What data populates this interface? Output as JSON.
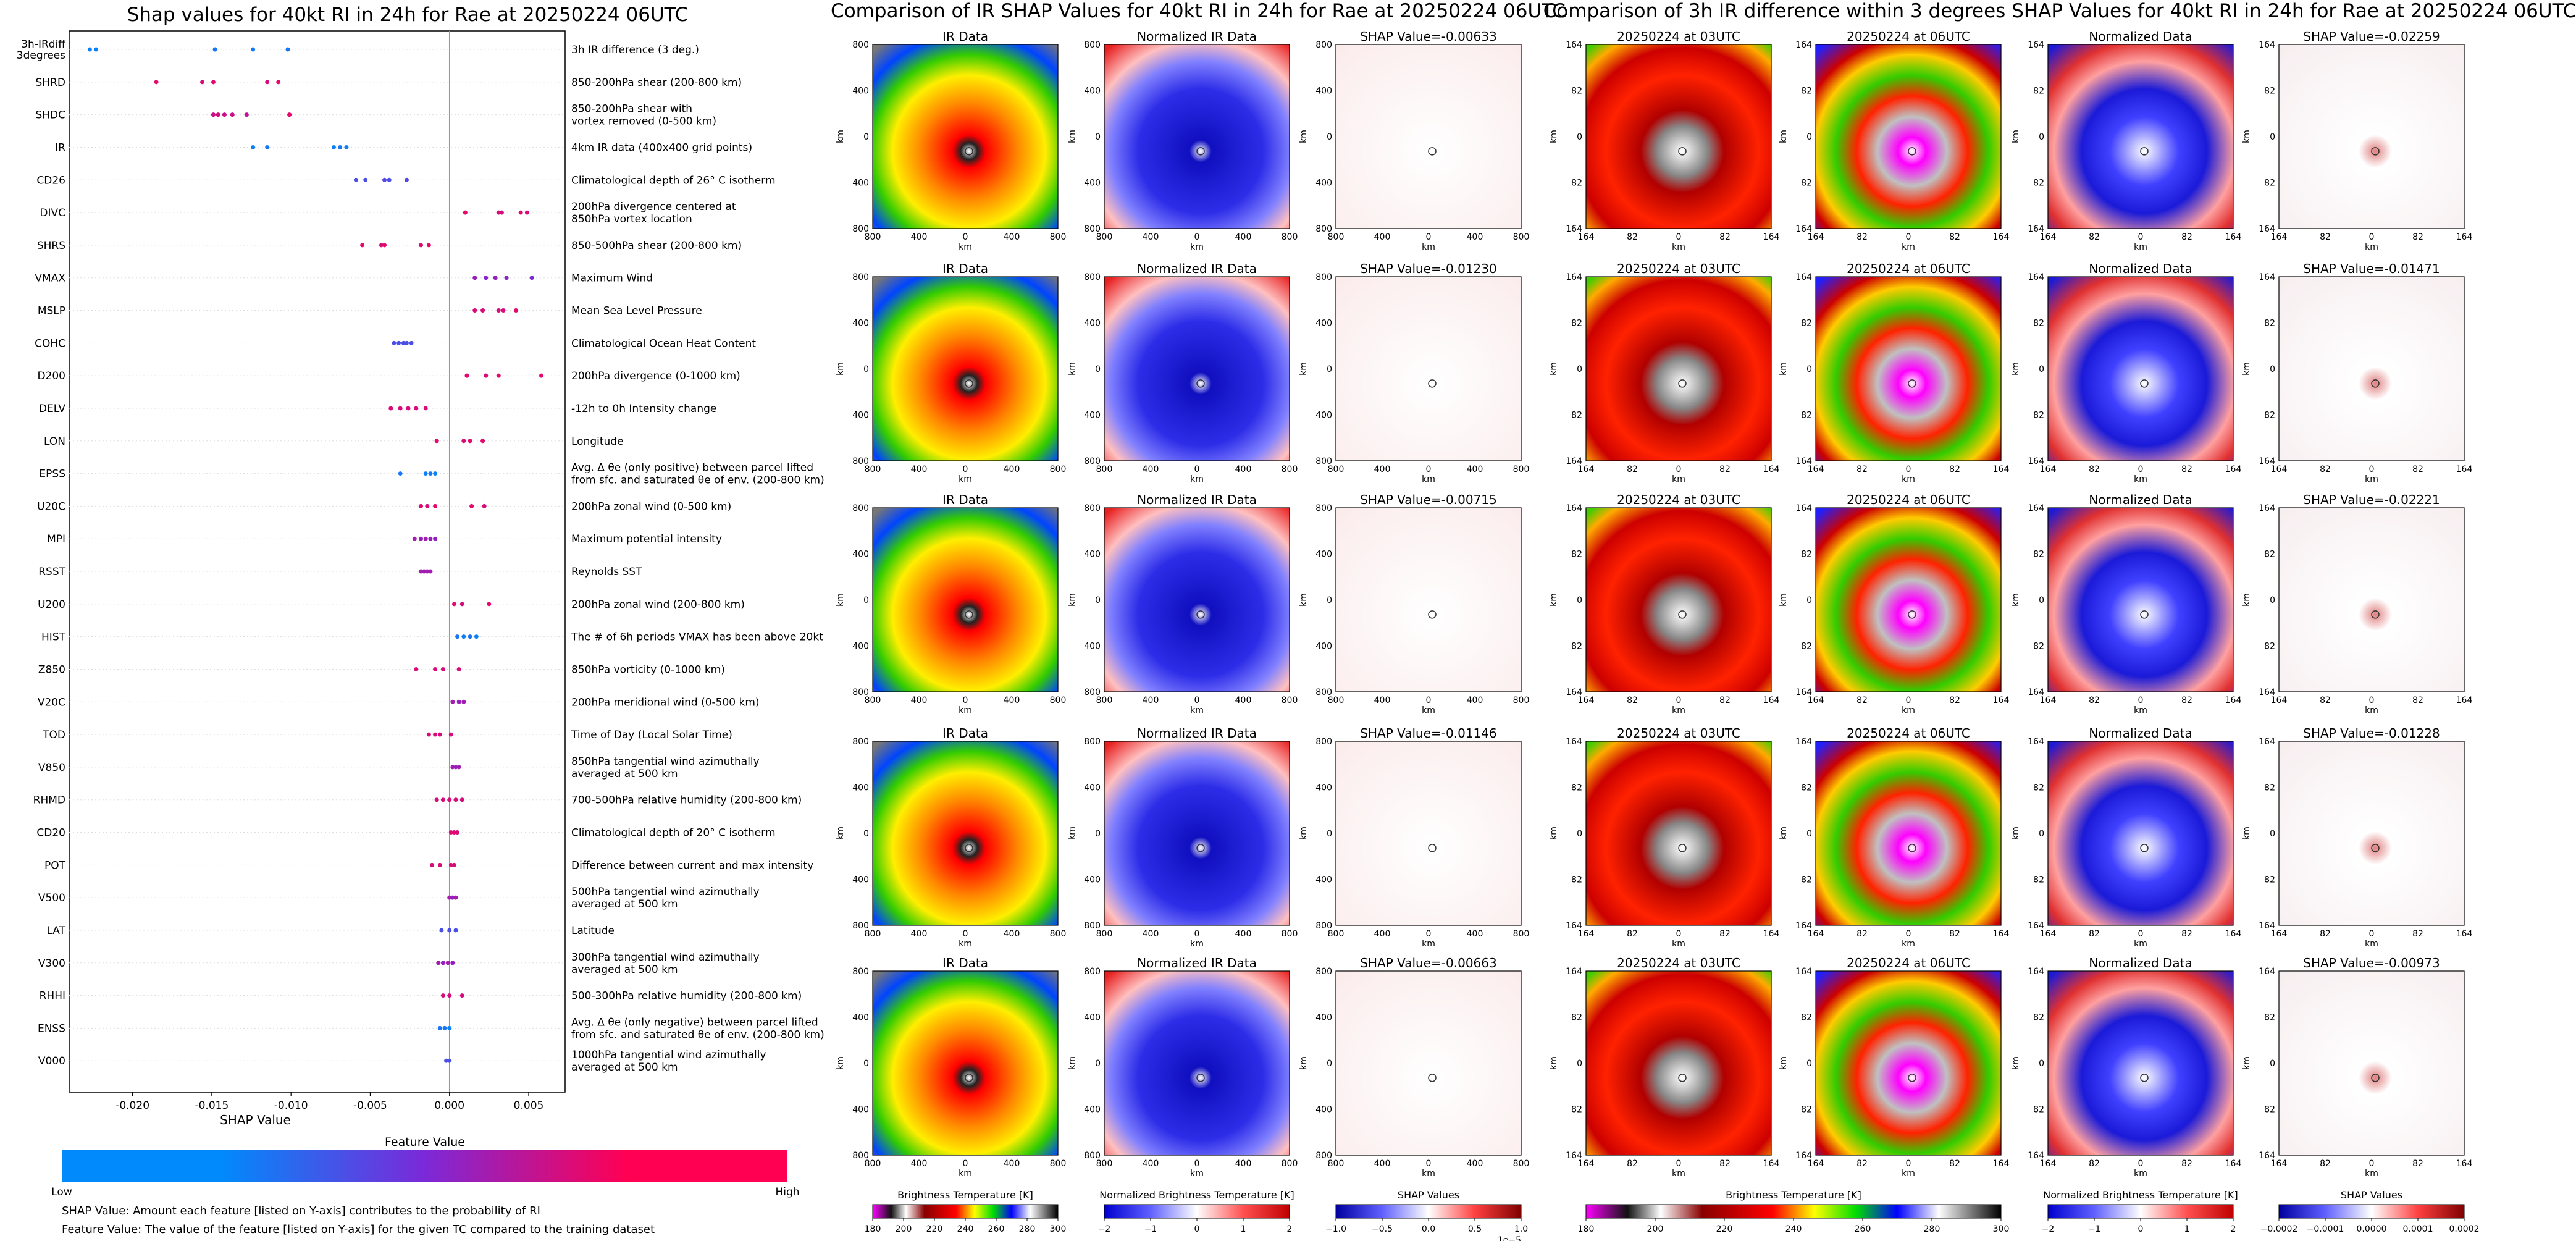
{
  "chart_data": [
    {
      "type": "scatter",
      "title": "Shap values for 40kt RI in 24h for Rae at 20250224 06UTC",
      "xlabel": "SHAP Value",
      "xlim": [
        -0.024,
        0.0073
      ],
      "xticks": [
        "-0.020",
        "-0.015",
        "-0.010",
        "-0.005",
        "0.000",
        "0.005"
      ],
      "xtick_values": [
        -0.02,
        -0.015,
        -0.01,
        -0.005,
        0.0,
        0.005
      ],
      "colorbar": {
        "title": "Feature Value",
        "low": "Low",
        "high": "High"
      },
      "features": [
        {
          "name": "3h-IRdiff\n3degrees",
          "desc": "3h IR difference (3 deg.)",
          "values": [
            -0.0227,
            -0.0223,
            -0.0148,
            -0.0124,
            -0.0102
          ],
          "colors": [
            0.05,
            0.05,
            0.1,
            0.08,
            0.1
          ]
        },
        {
          "name": "SHRD",
          "desc": "850-200hPa shear (200-800 km)",
          "values": [
            -0.0185,
            -0.0156,
            -0.0149,
            -0.0115,
            -0.0108
          ],
          "colors": [
            0.9,
            0.85,
            0.9,
            0.85,
            0.9
          ]
        },
        {
          "name": "SHDC",
          "desc": "850-200hPa shear with\nvortex removed (0-500 km)",
          "values": [
            -0.0149,
            -0.0146,
            -0.0142,
            -0.0137,
            -0.0128,
            -0.0101
          ],
          "colors": [
            0.8,
            0.85,
            0.8,
            0.8,
            0.75,
            0.9
          ]
        },
        {
          "name": "IR",
          "desc": "4km IR data (400x400 grid points)",
          "values": [
            -0.0124,
            -0.0115,
            -0.0073,
            -0.0069,
            -0.0065
          ],
          "colors": [
            0.05,
            0.1,
            0.05,
            0.1,
            0.05
          ]
        },
        {
          "name": "CD26",
          "desc": "Climatological depth of 26° C isotherm",
          "values": [
            -0.0059,
            -0.0053,
            -0.0041,
            -0.0038,
            -0.0027
          ],
          "colors": [
            0.3,
            0.3,
            0.35,
            0.3,
            0.35
          ]
        },
        {
          "name": "DIVC",
          "desc": "200hPa divergence centered at\n850hPa vortex location",
          "values": [
            0.001,
            0.0031,
            0.0033,
            0.0045,
            0.0049
          ],
          "colors": [
            0.9,
            0.85,
            0.85,
            0.9,
            0.85
          ]
        },
        {
          "name": "SHRS",
          "desc": "850-500hPa shear (200-800 km)",
          "values": [
            -0.0055,
            -0.0043,
            -0.0041,
            -0.0018,
            -0.0013
          ],
          "colors": [
            0.9,
            0.85,
            0.9,
            0.85,
            0.9
          ]
        },
        {
          "name": "VMAX",
          "desc": "Maximum Wind",
          "values": [
            0.0016,
            0.0023,
            0.0029,
            0.0036,
            0.0052
          ],
          "colors": [
            0.6,
            0.55,
            0.6,
            0.55,
            0.5
          ]
        },
        {
          "name": "MSLP",
          "desc": "Mean Sea Level Pressure",
          "values": [
            0.0016,
            0.0021,
            0.0031,
            0.0034,
            0.0042
          ],
          "colors": [
            0.85,
            0.85,
            0.85,
            0.85,
            0.9
          ]
        },
        {
          "name": "COHC",
          "desc": "Climatological Ocean Heat Content",
          "values": [
            -0.0035,
            -0.0032,
            -0.0029,
            -0.0027,
            -0.0024
          ],
          "colors": [
            0.3,
            0.3,
            0.3,
            0.3,
            0.3
          ]
        },
        {
          "name": "D200",
          "desc": "200hPa divergence (0-1000 km)",
          "values": [
            0.0011,
            0.0023,
            0.0031,
            0.0058
          ],
          "colors": [
            0.9,
            0.85,
            0.9,
            0.9
          ]
        },
        {
          "name": "DELV",
          "desc": "-12h to 0h Intensity change",
          "values": [
            -0.0037,
            -0.0031,
            -0.0026,
            -0.0021,
            -0.0015
          ],
          "colors": [
            0.85,
            0.85,
            0.85,
            0.85,
            0.85
          ]
        },
        {
          "name": "LON",
          "desc": "Longitude",
          "values": [
            -0.0008,
            0.0009,
            0.0013,
            0.0021
          ],
          "colors": [
            0.9,
            0.85,
            0.9,
            0.9
          ]
        },
        {
          "name": "EPSS",
          "desc": "Avg. Δ θe (only positive) between parcel lifted\nfrom sfc. and saturated θe of env. (200-800 km)",
          "values": [
            -0.0031,
            -0.0015,
            -0.0012,
            -0.0009
          ],
          "colors": [
            0.1,
            0.05,
            0.1,
            0.05
          ]
        },
        {
          "name": "U20C",
          "desc": "200hPa zonal wind (0-500 km)",
          "values": [
            -0.0018,
            -0.0014,
            -0.0009,
            0.0014,
            0.0022
          ],
          "colors": [
            0.9,
            0.85,
            0.9,
            0.9,
            0.85
          ]
        },
        {
          "name": "MPI",
          "desc": "Maximum potential intensity",
          "values": [
            -0.0022,
            -0.0018,
            -0.0015,
            -0.0012,
            -0.0009
          ],
          "colors": [
            0.65,
            0.6,
            0.65,
            0.6,
            0.6
          ]
        },
        {
          "name": "RSST",
          "desc": "Reynolds SST",
          "values": [
            -0.0018,
            -0.0016,
            -0.0014,
            -0.0012
          ],
          "colors": [
            0.65,
            0.65,
            0.65,
            0.65
          ]
        },
        {
          "name": "U200",
          "desc": "200hPa zonal wind (200-800 km)",
          "values": [
            0.0003,
            0.0008,
            0.0025
          ],
          "colors": [
            0.9,
            0.85,
            0.9
          ]
        },
        {
          "name": "HIST",
          "desc": "The # of 6h periods VMAX has been above 20kt",
          "values": [
            0.0005,
            0.0009,
            0.0013,
            0.0017
          ],
          "colors": [
            0.1,
            0.05,
            0.1,
            0.05
          ]
        },
        {
          "name": "Z850",
          "desc": "850hPa vorticity (0-1000 km)",
          "values": [
            -0.0021,
            -0.0009,
            -0.0004,
            0.0006
          ],
          "colors": [
            0.85,
            0.85,
            0.85,
            0.85
          ]
        },
        {
          "name": "V20C",
          "desc": "200hPa meridional wind (0-500 km)",
          "values": [
            0.0002,
            0.0006,
            0.0009
          ],
          "colors": [
            0.65,
            0.6,
            0.65
          ]
        },
        {
          "name": "TOD",
          "desc": "Time of Day (Local Solar Time)",
          "values": [
            -0.0013,
            -0.0009,
            -0.0006,
            0.0001
          ],
          "colors": [
            0.85,
            0.85,
            0.85,
            0.85
          ]
        },
        {
          "name": "V850",
          "desc": "850hPa tangential wind azimuthally\naveraged at 500 km",
          "values": [
            0.0002,
            0.0004,
            0.0006
          ],
          "colors": [
            0.65,
            0.6,
            0.65
          ]
        },
        {
          "name": "RHMD",
          "desc": "700-500hPa relative humidity (200-800 km)",
          "values": [
            -0.0008,
            -0.0004,
            0.0,
            0.0004,
            0.0008
          ],
          "colors": [
            0.85,
            0.85,
            0.85,
            0.85,
            0.85
          ]
        },
        {
          "name": "CD20",
          "desc": "Climatological depth of 20° C isotherm",
          "values": [
            0.0001,
            0.0003,
            0.0005
          ],
          "colors": [
            0.85,
            0.9,
            0.85
          ]
        },
        {
          "name": "POT",
          "desc": "Difference between current and max intensity",
          "values": [
            -0.0011,
            -0.0006,
            0.0001,
            0.0003
          ],
          "colors": [
            0.85,
            0.85,
            0.85,
            0.85
          ]
        },
        {
          "name": "V500",
          "desc": "500hPa tangential wind azimuthally\naveraged at 500 km",
          "values": [
            0.0,
            0.0002,
            0.0004
          ],
          "colors": [
            0.65,
            0.6,
            0.65
          ]
        },
        {
          "name": "LAT",
          "desc": "Latitude",
          "values": [
            -0.0005,
            0.0,
            0.0004
          ],
          "colors": [
            0.3,
            0.3,
            0.3
          ]
        },
        {
          "name": "V300",
          "desc": "300hPa tangential wind azimuthally\naveraged at 500 km",
          "values": [
            -0.0007,
            -0.0004,
            -0.0001,
            0.0002
          ],
          "colors": [
            0.65,
            0.6,
            0.65,
            0.6
          ]
        },
        {
          "name": "RHHI",
          "desc": "500-300hPa relative humidity (200-800 km)",
          "values": [
            -0.0004,
            0.0,
            0.0008
          ],
          "colors": [
            0.85,
            0.85,
            0.85
          ]
        },
        {
          "name": "ENSS",
          "desc": "Avg. Δ θe (only negative) between parcel lifted\nfrom sfc. and saturated θe of env. (200-800 km)",
          "values": [
            -0.0006,
            -0.0003,
            0.0
          ],
          "colors": [
            0.1,
            0.1,
            0.05
          ]
        },
        {
          "name": "V000",
          "desc": "1000hPa tangential wind azimuthally\naveraged at 500 km",
          "values": [
            -0.0002,
            0.0
          ],
          "colors": [
            0.3,
            0.3
          ]
        }
      ]
    },
    {
      "type": "heatmap",
      "title": "Comparison of IR SHAP Values for 40kt RI in 24h for Rae at 20250224 06UTC",
      "columns": [
        "IR Data",
        "Normalized IR Data",
        "SHAP Value"
      ],
      "shap_values": [
        "-0.00633",
        "-0.01230",
        "-0.00715",
        "-0.01146",
        "-0.00663"
      ],
      "ticks": [
        "800",
        "400",
        "0",
        "400",
        "800"
      ],
      "axis_label": "km",
      "colorbars": [
        {
          "label": "Brightness Temperature [K]",
          "ticks": [
            "180",
            "200",
            "220",
            "240",
            "260",
            "280",
            "300"
          ]
        },
        {
          "label": "Normalized Brightness Temperature [K]",
          "ticks": [
            "−2",
            "−1",
            "0",
            "1",
            "2"
          ]
        },
        {
          "label": "SHAP Values",
          "ticks": [
            "−1.0",
            "−0.5",
            "0.0",
            "0.5",
            "1.0"
          ],
          "offset": "1e−5"
        }
      ]
    },
    {
      "type": "heatmap",
      "title": "Comparison of 3h IR difference within 3 degrees SHAP Values for 40kt RI in 24h for Rae at 20250224 06UTC",
      "columns": [
        "20250224 at 03UTC",
        "20250224 at 06UTC",
        "Normalized Data",
        "SHAP Value"
      ],
      "shap_values": [
        "-0.02259",
        "-0.01471",
        "-0.02221",
        "-0.01228",
        "-0.00973"
      ],
      "ticks": [
        "164",
        "82",
        "0",
        "82",
        "164"
      ],
      "axis_label": "km",
      "colorbars": [
        {
          "label": "Brightness Temperature [K]",
          "ticks": [
            "180",
            "200",
            "220",
            "240",
            "260",
            "280",
            "300"
          ]
        },
        {
          "label": "Normalized Brightness Temperature [K]",
          "ticks": [
            "−2",
            "−1",
            "0",
            "1",
            "2"
          ]
        },
        {
          "label": "SHAP Values",
          "ticks": [
            "−0.0002",
            "−0.0001",
            "0.0000",
            "0.0001",
            "0.0002"
          ]
        }
      ]
    }
  ],
  "notes": {
    "shap_def": "SHAP Value: Amount each feature [listed on Y-axis] contributes to the probability of RI",
    "feature_def": "Feature Value: The value of the feature [listed on Y-axis] for the given TC compared to the training dataset"
  },
  "colors": {
    "low": "#008afb",
    "mid": "#7b29d8",
    "high": "#ff0052",
    "red": "#d62728",
    "blue": "#1f3dd6"
  }
}
